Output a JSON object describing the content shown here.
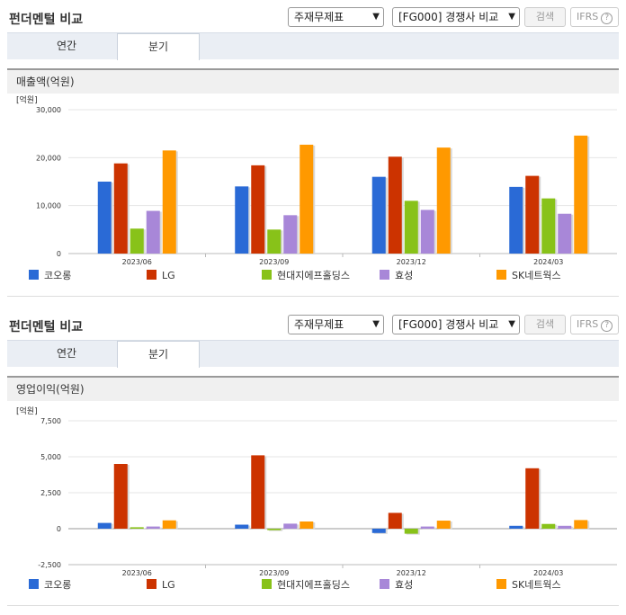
{
  "panels": [
    {
      "title": "펀더멘털 비교",
      "select1": "주재무제표",
      "select2": "[FG000] 경쟁사 비교",
      "search": "검색",
      "ifrs": "IFRS",
      "tabs": [
        "연간",
        "분기"
      ],
      "active_tab": 1,
      "section": "매출액(억원)"
    },
    {
      "title": "펀더멘털 비교",
      "select1": "주재무제표",
      "select2": "[FG000] 경쟁사 비교",
      "search": "검색",
      "ifrs": "IFRS",
      "tabs": [
        "연간",
        "분기"
      ],
      "active_tab": 1,
      "section": "영업이익(억원)"
    }
  ],
  "colors": [
    "#2a6ad6",
    "#cc3300",
    "#88c219",
    "#a887d8",
    "#ff9900"
  ],
  "chart_data": [
    {
      "type": "bar",
      "unit_label": "[억원]",
      "categories": [
        "2023/06",
        "2023/09",
        "2023/12",
        "2024/03"
      ],
      "yticks": [
        "30,000",
        "20,000",
        "10,000",
        "0"
      ],
      "ylim": [
        0,
        30000
      ],
      "series": [
        {
          "name": "코오롱",
          "values": [
            15000,
            14000,
            16000,
            13900
          ]
        },
        {
          "name": "LG",
          "values": [
            18800,
            18400,
            20200,
            16200
          ]
        },
        {
          "name": "현대지에프홀딩스",
          "values": [
            5200,
            5000,
            11000,
            11500
          ]
        },
        {
          "name": "효성",
          "values": [
            8900,
            8000,
            9100,
            8300
          ]
        },
        {
          "name": "SK네트웍스",
          "values": [
            21500,
            22700,
            22100,
            24600
          ]
        }
      ],
      "legend": "bottom"
    },
    {
      "type": "bar",
      "unit_label": "[억원]",
      "categories": [
        "2023/06",
        "2023/09",
        "2023/12",
        "2024/03"
      ],
      "yticks": [
        "7,500",
        "5,000",
        "2,500",
        "0",
        "-2,500"
      ],
      "ylim": [
        -2500,
        7500
      ],
      "series": [
        {
          "name": "코오롱",
          "values": [
            400,
            280,
            -300,
            200
          ]
        },
        {
          "name": "LG",
          "values": [
            4500,
            5100,
            1100,
            4200
          ]
        },
        {
          "name": "현대지에프홀딩스",
          "values": [
            100,
            -100,
            -350,
            330
          ]
        },
        {
          "name": "효성",
          "values": [
            150,
            350,
            150,
            200
          ]
        },
        {
          "name": "SK네트웍스",
          "values": [
            580,
            500,
            560,
            600
          ]
        }
      ],
      "legend": "bottom"
    }
  ]
}
